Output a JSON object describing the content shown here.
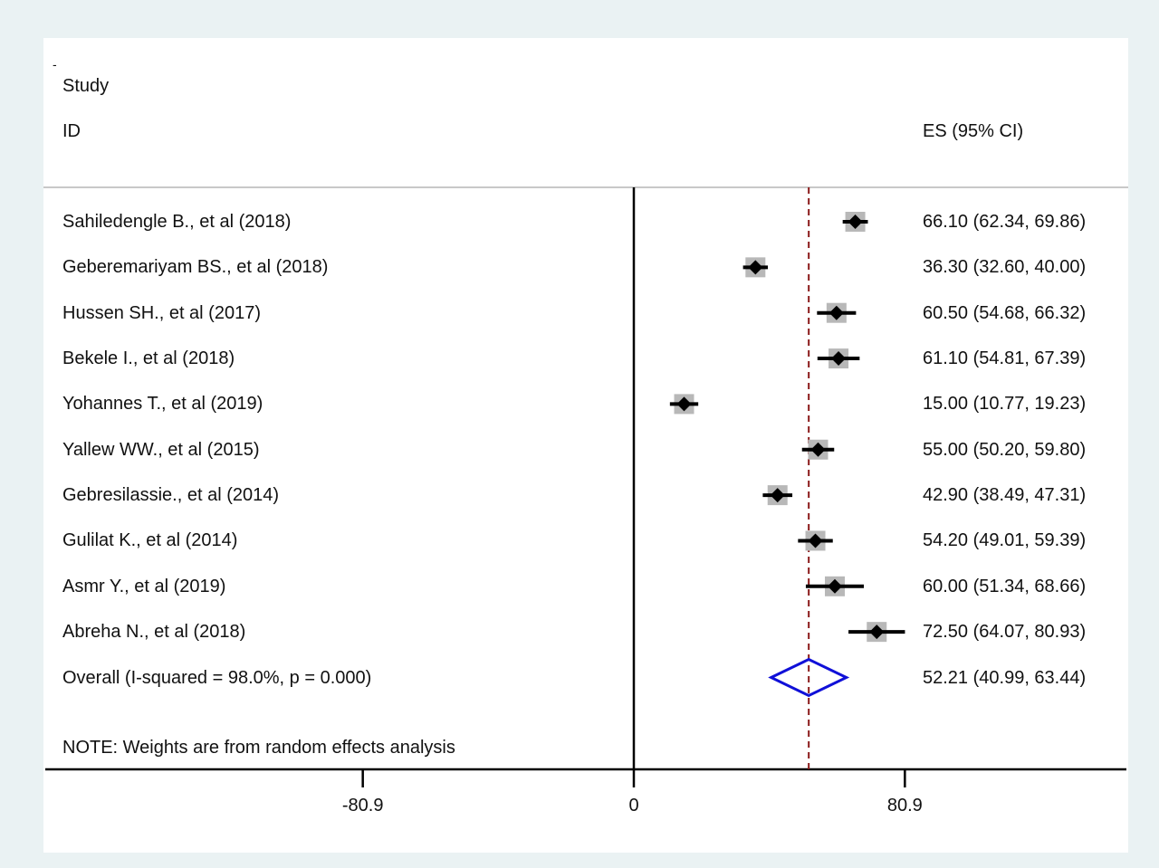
{
  "chart_data": {
    "type": "forest",
    "corner_mark": "-",
    "header": {
      "study": "Study",
      "id": "ID",
      "es": "ES (95% CI)"
    },
    "studies": [
      {
        "label": "Sahiledengle B., et al (2018)",
        "es": 66.1,
        "lo": 62.34,
        "hi": 69.86,
        "ci_text": "66.10 (62.34, 69.86)"
      },
      {
        "label": "Geberemariyam BS., et al (2018)",
        "es": 36.3,
        "lo": 32.6,
        "hi": 40.0,
        "ci_text": "36.30 (32.60, 40.00)"
      },
      {
        "label": "Hussen SH., et al (2017)",
        "es": 60.5,
        "lo": 54.68,
        "hi": 66.32,
        "ci_text": "60.50 (54.68, 66.32)"
      },
      {
        "label": "Bekele I., et al (2018)",
        "es": 61.1,
        "lo": 54.81,
        "hi": 67.39,
        "ci_text": "61.10 (54.81, 67.39)"
      },
      {
        "label": "Yohannes T., et al (2019)",
        "es": 15.0,
        "lo": 10.77,
        "hi": 19.23,
        "ci_text": "15.00 (10.77, 19.23)"
      },
      {
        "label": "Yallew WW., et al (2015)",
        "es": 55.0,
        "lo": 50.2,
        "hi": 59.8,
        "ci_text": "55.00 (50.20, 59.80)"
      },
      {
        "label": "Gebresilassie., et al (2014)",
        "es": 42.9,
        "lo": 38.49,
        "hi": 47.31,
        "ci_text": "42.90 (38.49, 47.31)"
      },
      {
        "label": "Gulilat K., et al (2014)",
        "es": 54.2,
        "lo": 49.01,
        "hi": 59.39,
        "ci_text": "54.20 (49.01, 59.39)"
      },
      {
        "label": "Asmr Y., et al (2019)",
        "es": 60.0,
        "lo": 51.34,
        "hi": 68.66,
        "ci_text": "60.00 (51.34, 68.66)"
      },
      {
        "label": "Abreha N., et al (2018)",
        "es": 72.5,
        "lo": 64.07,
        "hi": 80.93,
        "ci_text": "72.50 (64.07, 80.93)"
      }
    ],
    "overall": {
      "label": "Overall  (I-squared = 98.0%, p = 0.000)",
      "es": 52.21,
      "lo": 40.99,
      "hi": 63.44,
      "ci_text": "52.21 (40.99, 63.44)"
    },
    "note": "NOTE: Weights are from random effects analysis",
    "x_ticks": [
      {
        "value": -80.9,
        "label": "-80.9"
      },
      {
        "value": 0,
        "label": "0"
      },
      {
        "value": 80.9,
        "label": "80.9"
      }
    ],
    "colors": {
      "background": "#eaf2f3",
      "marker": "#000000",
      "weight_box": "#b8b8b8",
      "overall_diamond": "#1010d8",
      "reference_line": "#8b1a1a"
    }
  }
}
